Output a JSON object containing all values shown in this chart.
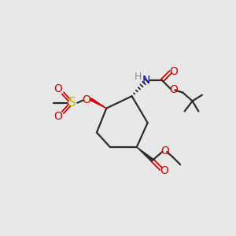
{
  "background_color": "#e8e8e8",
  "bond_color": "#2d2d2d",
  "colors": {
    "N": "#0000cc",
    "O": "#cc0000",
    "S": "#bbbb00",
    "C": "#2d2d2d",
    "H": "#888888"
  },
  "figsize": [
    3.0,
    3.0
  ],
  "dpi": 100
}
